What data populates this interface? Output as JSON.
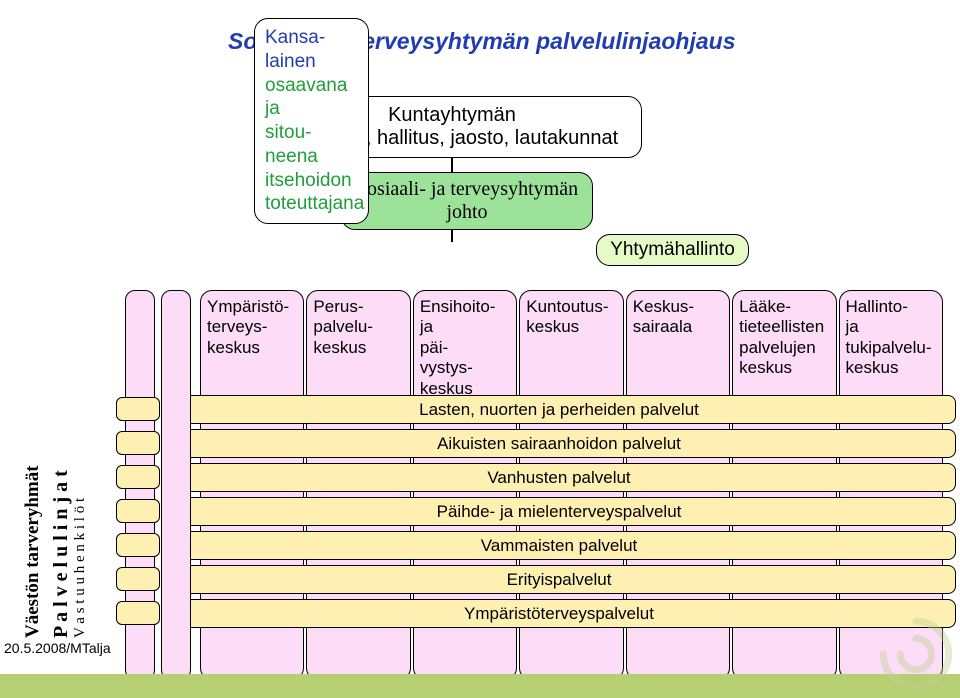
{
  "colors": {
    "title": "#1f3db0",
    "citizen_normal": "#1f3db0",
    "citizen_green": "#1f9e3a",
    "kunta_bg": "#ffffff",
    "johto_bg": "#9ce29a",
    "admin_bg": "#e6fac7",
    "column_bg": "#fcdcf6",
    "row_bg": "#fef0b2",
    "footer_bg": "#b6cf73",
    "swirl": "#bed18f"
  },
  "title": "Sosiaali- ja terveysyhtymän palvelulinjaohjaus",
  "title_fontsize": 23,
  "citizen_box": {
    "lines": [
      {
        "text": "Kansa-",
        "color": "blue"
      },
      {
        "text": "lainen",
        "color": "blue"
      },
      {
        "text": "osaavana",
        "color": "green"
      },
      {
        "text": "ja",
        "color": "green"
      },
      {
        "text": "sitou-",
        "color": "green"
      },
      {
        "text": "neena",
        "color": "green"
      },
      {
        "text": "itsehoidon",
        "color": "green"
      },
      {
        "text": "toteuttajana",
        "color": "green"
      }
    ],
    "fontsize": 19
  },
  "kunta_box": {
    "line1": "Kuntayhtymän",
    "line2": "valtuusto, hallitus, jaosto, lautakunnat",
    "fontsize": 20
  },
  "johto_box": {
    "line1": "Sosiaali- ja terveysyhtymän",
    "line2": "johto",
    "fontsize": 20
  },
  "admin_box": "Yhtymähallinto",
  "admin_fontsize": 19,
  "columns": [
    "Ympäristö-\nterveys-\nkeskus",
    "Perus-\npalvelu-\nkeskus",
    "Ensihoito-\nja\npäi-\nvystys-\nkeskus",
    "Kuntoutus-\nkeskus",
    "Keskus-\nsairaala",
    "Lääke-\ntieteellisten\npalvelujen\nkeskus",
    "Hallinto-\nja\ntukipalvelu-\nkeskus"
  ],
  "service_rows": [
    "Lasten, nuorten ja perheiden palvelut",
    "Aikuisten sairaanhoidon palvelut",
    "Vanhusten palvelut",
    "Päihde- ja mielenterveyspalvelut",
    "Vammaisten palvelut",
    "Erityispalvelut",
    "Ympäristöterveyspalvelut"
  ],
  "sidebar": {
    "label1": "Väestön tarveryhmät",
    "label2": "P a l v e l u l i n j a t",
    "label3": "V a s t u u h e n k i l ö t",
    "fontsize1": 19,
    "fontsize2": 20,
    "fontsize3": 15
  },
  "date": "20.5.2008/MTalja"
}
